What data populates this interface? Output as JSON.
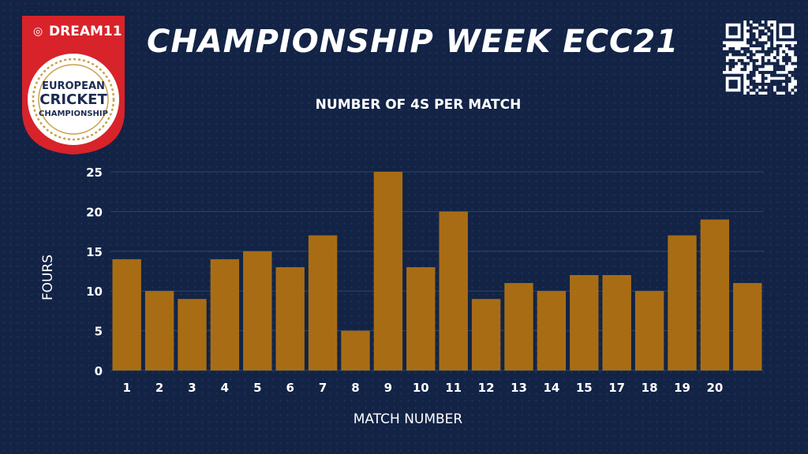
{
  "header": {
    "title": "CHAMPIONSHIP WEEK ECC21",
    "logo": {
      "brand": "DREAM11",
      "line1": "EUROPEAN",
      "line2": "CRICKET",
      "line3": "CHAMPIONSHIP"
    }
  },
  "colors": {
    "background": "#122346",
    "bar": "#a86d14",
    "text": "#ffffff",
    "grid": "#2f4468",
    "logo_red": "#d8232a",
    "logo_gold": "#c9a14a"
  },
  "chart_data": {
    "type": "bar",
    "title": "NUMBER OF 4S PER MATCH",
    "xlabel": "MATCH NUMBER",
    "ylabel": "FOURS",
    "categories": [
      "1",
      "2",
      "3",
      "4",
      "5",
      "6",
      "7",
      "8",
      "9",
      "10",
      "11",
      "12",
      "13",
      "14",
      "15",
      "17",
      "18",
      "19",
      "20",
      ""
    ],
    "values": [
      14,
      10,
      9,
      14,
      15,
      13,
      17,
      5,
      25,
      13,
      20,
      9,
      11,
      10,
      12,
      12,
      10,
      17,
      19,
      11
    ],
    "ylim": [
      0,
      25
    ],
    "yticks": [
      0,
      5,
      10,
      15,
      20,
      25
    ],
    "grid": true,
    "legend": "none"
  }
}
